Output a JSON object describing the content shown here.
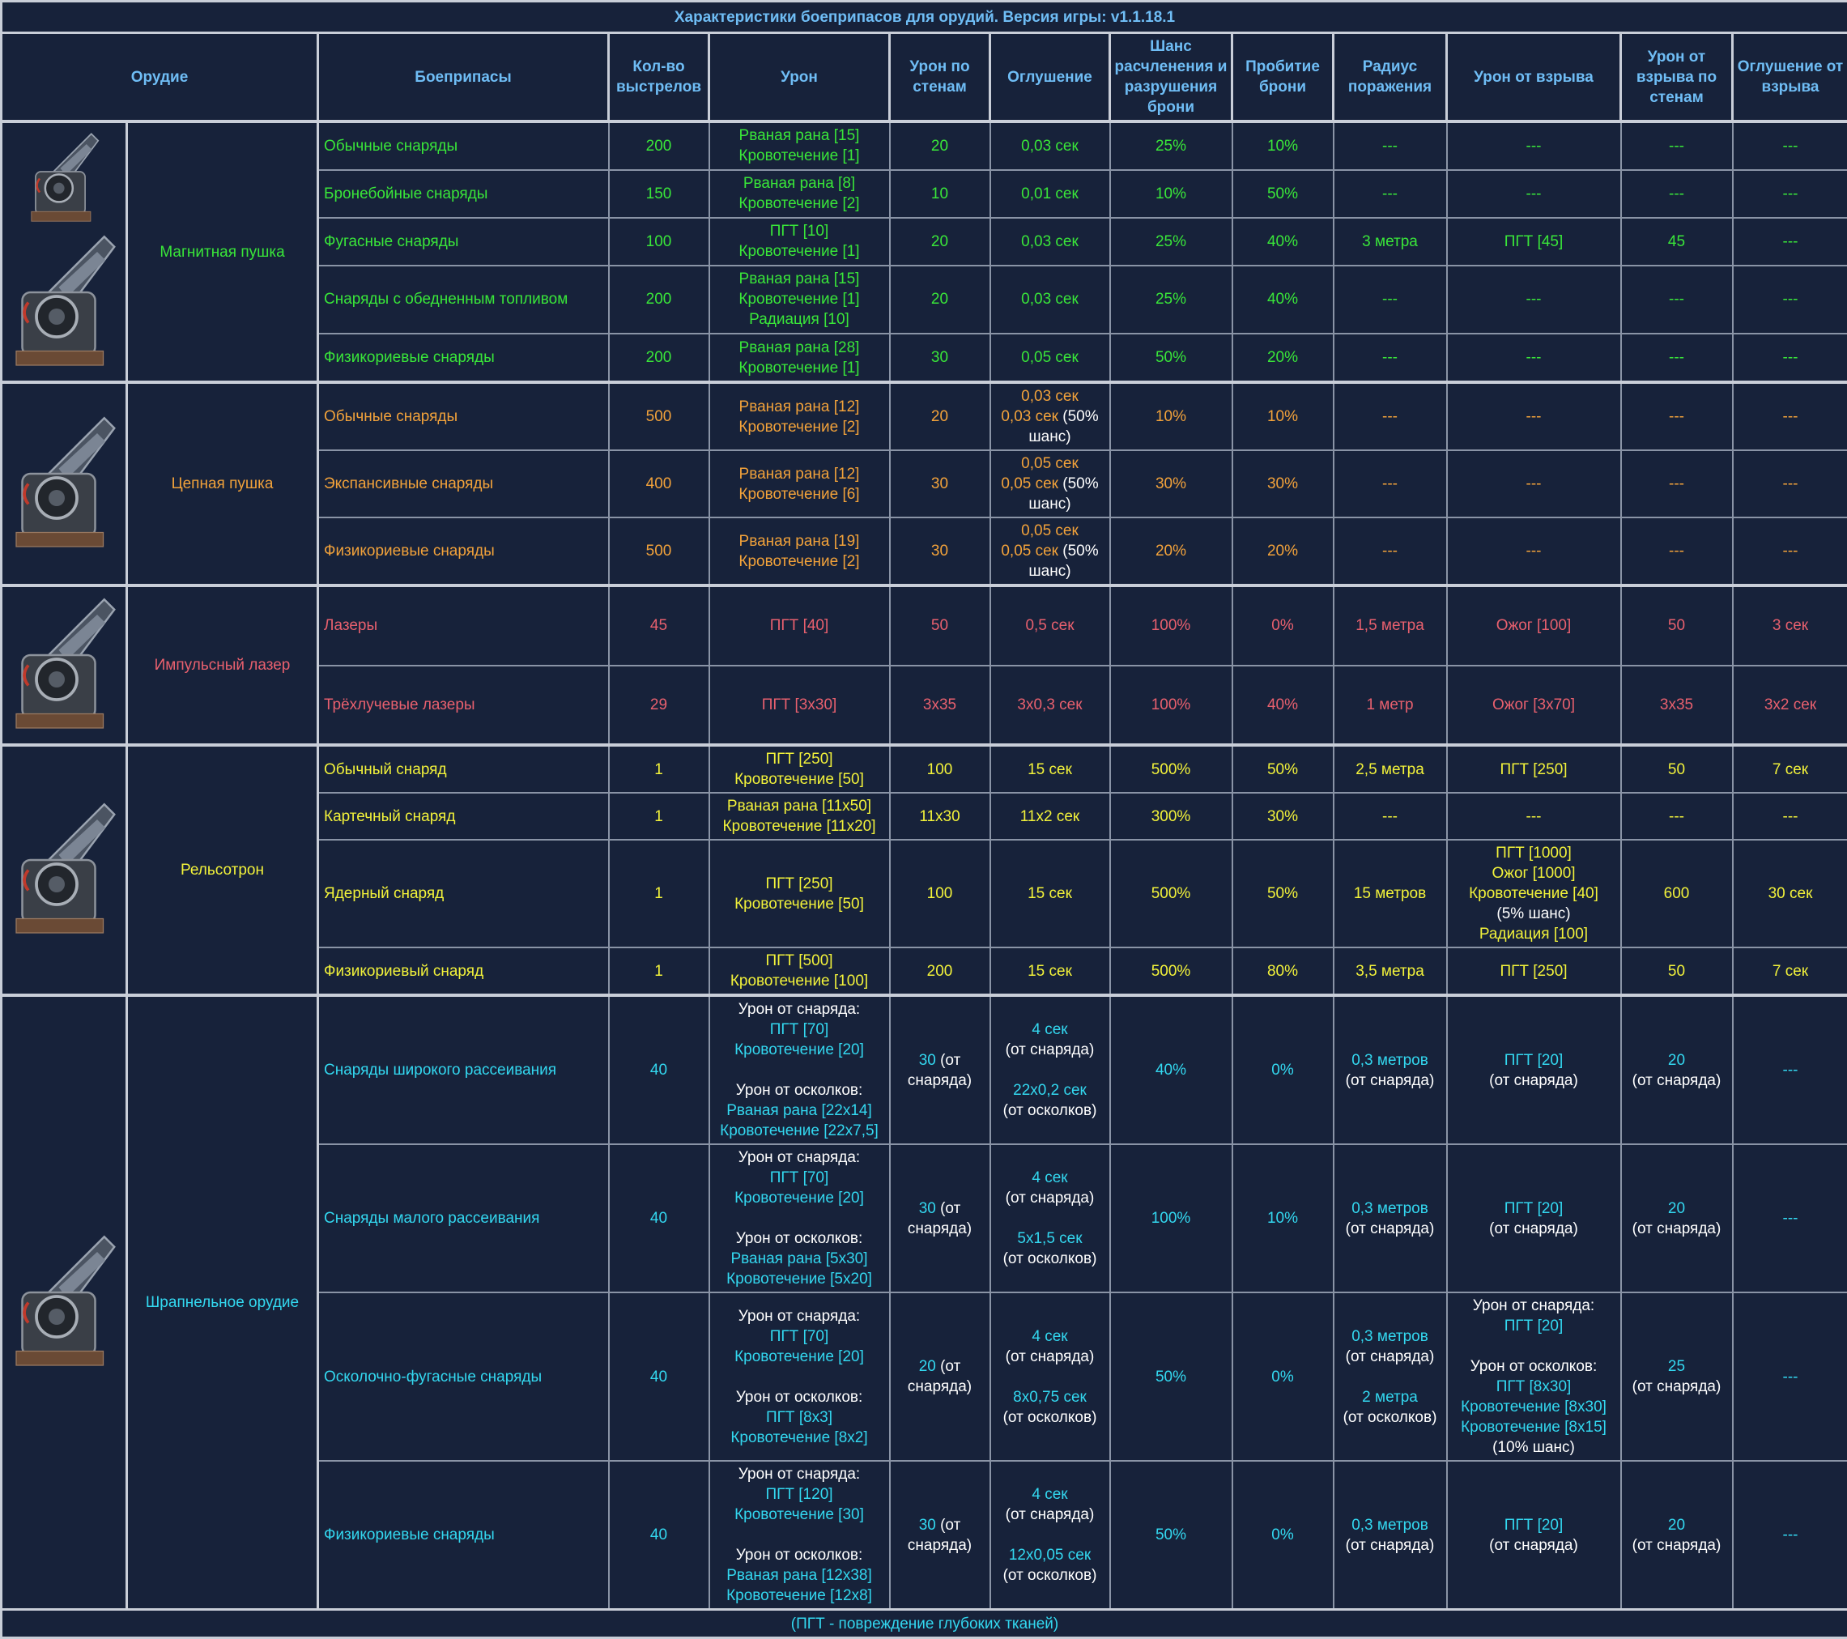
{
  "title": "Характеристики боеприпасов для орудий. Версия игры: v1.1.18.1",
  "headers": [
    "Орудие",
    "Боеприпасы",
    "Кол-во выстрелов",
    "Урон",
    "Урон по стенам",
    "Оглушение",
    "Шанс расчленения и разрушения брони",
    "Пробитие брони",
    "Радиус поражения",
    "Урон от взрыва",
    "Урон от взрыва по стенам",
    "Оглушение от взрыва"
  ],
  "footer": "(ПГТ - повреждение глубоких тканей)",
  "colors": {
    "magnet": "#39e639",
    "chain": "#f2a23a",
    "laser": "#e8606e",
    "rail": "#f2f23a",
    "shrapnel": "#33d8f0",
    "white": "#ffffff"
  },
  "groups": [
    {
      "name": "Магнитная пушка",
      "color": "#39e639",
      "icons": [
        "magnet-cannon-small-icon",
        "magnet-cannon-large-icon"
      ],
      "rows": [
        {
          "ammo": "Обычные снаряды",
          "cells": [
            "200",
            [
              "Рваная рана [15]",
              "Кровотечение [1]"
            ],
            "20",
            "0,03 сек",
            "25%",
            "10%",
            "---",
            "---",
            "---",
            "---"
          ]
        },
        {
          "ammo": "Бронебойные снаряды",
          "cells": [
            "150",
            [
              "Рваная рана [8]",
              "Кровотечение [2]"
            ],
            "10",
            "0,01 сек",
            "10%",
            "50%",
            "---",
            "---",
            "---",
            "---"
          ]
        },
        {
          "ammo": "Фугасные снаряды",
          "cells": [
            "100",
            [
              "ПГТ [10]",
              "Кровотечение [1]"
            ],
            "20",
            "0,03 сек",
            "25%",
            "40%",
            "3 метра",
            "ПГТ [45]",
            "45",
            "---"
          ]
        },
        {
          "ammo": "Снаряды с обедненным топливом",
          "cells": [
            "200",
            [
              "Рваная рана [15]",
              "Кровотечение [1]",
              "Радиация [10]"
            ],
            "20",
            "0,03 сек",
            "25%",
            "40%",
            "---",
            "---",
            "---",
            "---"
          ]
        },
        {
          "ammo": "Физикориевые снаряды",
          "cells": [
            "200",
            [
              "Рваная рана [28]",
              "Кровотечение [1]"
            ],
            "30",
            "0,05 сек",
            "50%",
            "20%",
            "---",
            "---",
            "---",
            "---"
          ]
        }
      ]
    },
    {
      "name": "Цепная пушка",
      "color": "#f2a23a",
      "icons": [
        "chain-cannon-icon"
      ],
      "rows": [
        {
          "ammo": "Обычные снаряды",
          "cells": [
            "500",
            [
              "Рваная рана [12]",
              "Кровотечение [2]"
            ],
            "20",
            [
              "0,03 сек",
              [
                "0,03 сек",
                {
                  "w": " (50%"
                }
              ],
              {
                "w": "шанс)"
              }
            ],
            "10%",
            "10%",
            "---",
            "---",
            "---",
            "---"
          ]
        },
        {
          "ammo": "Экспансивные снаряды",
          "cells": [
            "400",
            [
              "Рваная рана [12]",
              "Кровотечение [6]"
            ],
            "30",
            [
              "0,05 сек",
              [
                "0,05 сек",
                {
                  "w": " (50%"
                }
              ],
              {
                "w": "шанс)"
              }
            ],
            "30%",
            "30%",
            "---",
            "---",
            "---",
            "---"
          ]
        },
        {
          "ammo": "Физикориевые снаряды",
          "cells": [
            "500",
            [
              "Рваная рана [19]",
              "Кровотечение [2]"
            ],
            "30",
            [
              "0,05 сек",
              [
                "0,05 сек",
                {
                  "w": " (50%"
                }
              ],
              {
                "w": "шанс)"
              }
            ],
            "20%",
            "20%",
            "---",
            "---",
            "---",
            "---"
          ]
        }
      ]
    },
    {
      "name": "Импульсный лазер",
      "color": "#e8606e",
      "icons": [
        "pulse-laser-icon"
      ],
      "rows": [
        {
          "ammo": "Лазеры",
          "cells": [
            "45",
            "ПГТ [40]",
            "50",
            "0,5 сек",
            "100%",
            "0%",
            "1,5 метра",
            "Ожог [100]",
            "50",
            "3 сек"
          ]
        },
        {
          "ammo": "Трёхлучевые лазеры",
          "cells": [
            "29",
            "ПГТ [3x30]",
            "3x35",
            "3x0,3 сек",
            "100%",
            "40%",
            "1 метр",
            "Ожог [3x70]",
            "3x35",
            "3x2 сек"
          ]
        }
      ]
    },
    {
      "name": "Рельсотрон",
      "color": "#f2f23a",
      "icons": [
        "railgun-icon"
      ],
      "rows": [
        {
          "ammo": "Обычный снаряд",
          "cells": [
            "1",
            [
              "ПГТ [250]",
              "Кровотечение [50]"
            ],
            "100",
            "15 сек",
            "500%",
            "50%",
            "2,5 метра",
            "ПГТ [250]",
            "50",
            "7 сек"
          ]
        },
        {
          "ammo": "Картечный снаряд",
          "cells": [
            "1",
            [
              "Рваная рана [11x50]",
              "Кровотечение [11x20]"
            ],
            "11x30",
            "11x2 сек",
            "300%",
            "30%",
            "---",
            "---",
            "---",
            "---"
          ]
        },
        {
          "ammo": "Ядерный снаряд",
          "cells": [
            "1",
            [
              "ПГТ [250]",
              "Кровотечение [50]"
            ],
            "100",
            "15 сек",
            "500%",
            "50%",
            "15 метров",
            [
              "ПГТ [1000]",
              "Ожог [1000]",
              "Кровотечение [40]",
              {
                "w": "(5% шанс)"
              },
              "Радиация [100]"
            ],
            "600",
            "30 сек"
          ]
        },
        {
          "ammo": "Физикориевый снаряд",
          "cells": [
            "1",
            [
              "ПГТ [500]",
              "Кровотечение [100]"
            ],
            "200",
            "15 сек",
            "500%",
            "80%",
            "3,5 метра",
            "ПГТ [250]",
            "50",
            "7 сек"
          ]
        }
      ]
    },
    {
      "name": "Шрапнельное орудие",
      "color": "#33d8f0",
      "icons": [
        "shrapnel-cannon-icon"
      ],
      "rows": [
        {
          "ammo": "Снаряды широкого рассеивания",
          "cells": [
            "40",
            [
              {
                "w": "Урон от снаряда:"
              },
              "ПГТ [70]",
              "Кровотечение [20]",
              "",
              {
                "w": "Урон от осколков:"
              },
              "Рваная рана [22x14]",
              "Кровотечение [22x7,5]"
            ],
            [
              [
                "30",
                {
                  "w": " (от"
                }
              ],
              {
                "w": "снаряда)"
              }
            ],
            [
              "4 сек",
              {
                "w": "(от снаряда)"
              },
              "",
              "22x0,2 сек",
              {
                "w": "(от осколков)"
              }
            ],
            "40%",
            "0%",
            [
              "0,3 метров",
              {
                "w": "(от снаряда)"
              }
            ],
            [
              "ПГТ [20]",
              {
                "w": "(от снаряда)"
              }
            ],
            [
              "20",
              {
                "w": "(от снаряда)"
              }
            ],
            "---"
          ]
        },
        {
          "ammo": "Снаряды малого рассеивания",
          "cells": [
            "40",
            [
              {
                "w": "Урон от снаряда:"
              },
              "ПГТ [70]",
              "Кровотечение [20]",
              "",
              {
                "w": "Урон от осколков:"
              },
              "Рваная рана [5x30]",
              "Кровотечение [5x20]"
            ],
            [
              [
                "30",
                {
                  "w": " (от"
                }
              ],
              {
                "w": "снаряда)"
              }
            ],
            [
              "4 сек",
              {
                "w": "(от снаряда)"
              },
              "",
              "5x1,5 сек",
              {
                "w": "(от осколков)"
              }
            ],
            "100%",
            "10%",
            [
              "0,3 метров",
              {
                "w": "(от снаряда)"
              }
            ],
            [
              "ПГТ [20]",
              {
                "w": "(от снаряда)"
              }
            ],
            [
              "20",
              {
                "w": "(от снаряда)"
              }
            ],
            "---"
          ]
        },
        {
          "ammo": "Осколочно-фугасные снаряды",
          "cells": [
            "40",
            [
              {
                "w": "Урон от снаряда:"
              },
              "ПГТ [70]",
              "Кровотечение [20]",
              "",
              {
                "w": "Урон от осколков:"
              },
              "ПГТ [8x3]",
              "Кровотечение [8x2]"
            ],
            [
              [
                "20",
                {
                  "w": " (от"
                }
              ],
              {
                "w": "снаряда)"
              }
            ],
            [
              "4 сек",
              {
                "w": "(от снаряда)"
              },
              "",
              "8x0,75 сек",
              {
                "w": "(от осколков)"
              }
            ],
            "50%",
            "0%",
            [
              "0,3 метров",
              {
                "w": "(от снаряда)"
              },
              "",
              "2 метра",
              {
                "w": "(от осколков)"
              }
            ],
            [
              {
                "w": "Урон от снаряда:"
              },
              "ПГТ [20]",
              "",
              {
                "w": "Урон от осколков:"
              },
              "ПГТ [8x30]",
              "Кровотечение [8x30]",
              "Кровотечение [8x15]",
              {
                "w": "(10% шанс)"
              }
            ],
            [
              "25",
              {
                "w": "(от снаряда)"
              }
            ],
            "---"
          ]
        },
        {
          "ammo": "Физикориевые снаряды",
          "cells": [
            "40",
            [
              {
                "w": "Урон от снаряда:"
              },
              "ПГТ [120]",
              "Кровотечение [30]",
              "",
              {
                "w": "Урон от осколков:"
              },
              "Рваная рана [12x38]",
              "Кровотечение [12x8]"
            ],
            [
              [
                "30",
                {
                  "w": " (от"
                }
              ],
              {
                "w": "снаряда)"
              }
            ],
            [
              "4 сек",
              {
                "w": "(от снаряда)"
              },
              "",
              "12x0,05 сек",
              {
                "w": "(от осколков)"
              }
            ],
            "50%",
            "0%",
            [
              "0,3 метров",
              {
                "w": "(от снаряда)"
              }
            ],
            [
              "ПГТ [20]",
              {
                "w": "(от снаряда)"
              }
            ],
            [
              "20",
              {
                "w": "(от снаряда)"
              }
            ],
            "---"
          ]
        }
      ]
    }
  ]
}
